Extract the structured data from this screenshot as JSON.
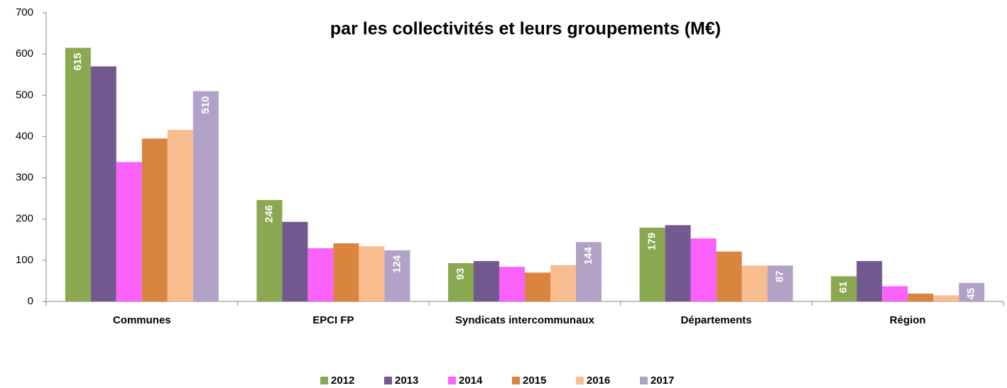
{
  "chart_data": {
    "type": "bar",
    "title": "par les collectivités et leurs groupements  (M€)",
    "categories": [
      "Communes",
      "EPCI FP",
      "Syndicats intercommunaux",
      "Départements",
      "Région"
    ],
    "series": [
      {
        "name": "2012",
        "color": "#8aa84f",
        "values": [
          615,
          246,
          93,
          179,
          61
        ],
        "data_labels": true
      },
      {
        "name": "2013",
        "color": "#72598f",
        "values": [
          570,
          193,
          98,
          185,
          98
        ]
      },
      {
        "name": "2014",
        "color": "#fb62fb",
        "values": [
          338,
          129,
          84,
          153,
          37
        ]
      },
      {
        "name": "2015",
        "color": "#d9843f",
        "values": [
          395,
          141,
          70,
          121,
          19
        ]
      },
      {
        "name": "2016",
        "color": "#f8be8f",
        "values": [
          416,
          134,
          88,
          87,
          15
        ]
      },
      {
        "name": "2017",
        "color": "#b3a2c7",
        "values": [
          510,
          124,
          144,
          87,
          45
        ],
        "data_labels": true
      }
    ],
    "ylim": [
      0,
      700
    ],
    "yticks": [
      0,
      100,
      200,
      300,
      400,
      500,
      600,
      700
    ],
    "grid": false,
    "legend": "bottom"
  }
}
